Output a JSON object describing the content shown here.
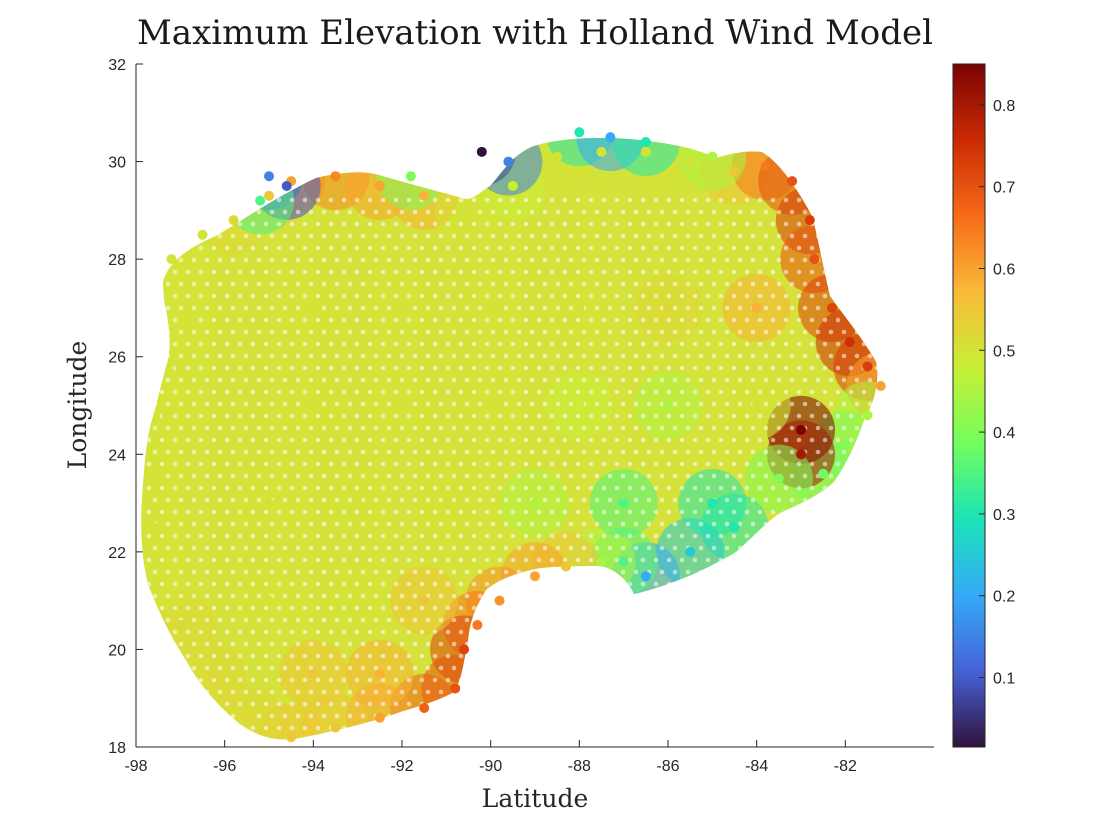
{
  "chart_data": {
    "type": "scatter",
    "title": "Maximum Elevation with Holland Wind Model",
    "xlabel": "Latitude",
    "ylabel": "Longitude",
    "xlim": [
      -98,
      -80
    ],
    "ylim": [
      18,
      32
    ],
    "xticks": [
      -98,
      -96,
      -94,
      -92,
      -90,
      -88,
      -86,
      -84,
      -82
    ],
    "yticks": [
      18,
      20,
      22,
      24,
      26,
      28,
      30,
      32
    ],
    "colorbar": {
      "range": [
        0.015,
        0.85
      ],
      "ticks": [
        0.1,
        0.2,
        0.3,
        0.4,
        0.5,
        0.6,
        0.7,
        0.8
      ],
      "colormap": [
        "#30123b",
        "#4662d7",
        "#36aaf9",
        "#1ae4b6",
        "#72fe5e",
        "#c8ef34",
        "#faba39",
        "#f66b19",
        "#cb2a04",
        "#7a0403"
      ]
    },
    "points": [
      [
        -97.2,
        28.0,
        0.5
      ],
      [
        -96.5,
        28.5,
        0.5
      ],
      [
        -95.8,
        28.8,
        0.52
      ],
      [
        -95.0,
        29.3,
        0.55
      ],
      [
        -94.5,
        29.6,
        0.6
      ],
      [
        -93.5,
        29.7,
        0.63
      ],
      [
        -92.5,
        29.5,
        0.6
      ],
      [
        -91.5,
        29.3,
        0.58
      ],
      [
        -90.5,
        29.0,
        0.5
      ],
      [
        -89.5,
        29.5,
        0.48
      ],
      [
        -88.5,
        30.1,
        0.5
      ],
      [
        -87.5,
        30.2,
        0.5
      ],
      [
        -86.5,
        30.2,
        0.5
      ],
      [
        -85.5,
        30.0,
        0.5
      ],
      [
        -84.5,
        29.8,
        0.55
      ],
      [
        -83.8,
        29.9,
        0.65
      ],
      [
        -83.2,
        29.6,
        0.7
      ],
      [
        -82.8,
        28.8,
        0.73
      ],
      [
        -82.7,
        28.0,
        0.7
      ],
      [
        -82.3,
        27.0,
        0.72
      ],
      [
        -81.9,
        26.3,
        0.75
      ],
      [
        -81.5,
        25.8,
        0.73
      ],
      [
        -81.2,
        25.4,
        0.6
      ],
      [
        -81.5,
        24.8,
        0.45
      ],
      [
        -82.0,
        24.2,
        0.4
      ],
      [
        -82.5,
        23.6,
        0.38
      ],
      [
        -83.0,
        24.5,
        0.85
      ],
      [
        -83.0,
        24.0,
        0.8
      ],
      [
        -83.5,
        23.5,
        0.4
      ],
      [
        -84.5,
        22.5,
        0.3
      ],
      [
        -85.5,
        22.0,
        0.25
      ],
      [
        -86.5,
        21.5,
        0.2
      ],
      [
        -87.0,
        21.8,
        0.35
      ],
      [
        -87.5,
        21.8,
        0.45
      ],
      [
        -88.3,
        21.7,
        0.55
      ],
      [
        -89.0,
        21.5,
        0.6
      ],
      [
        -89.8,
        21.0,
        0.62
      ],
      [
        -90.3,
        20.5,
        0.65
      ],
      [
        -90.6,
        20.0,
        0.72
      ],
      [
        -90.8,
        19.2,
        0.7
      ],
      [
        -91.5,
        18.8,
        0.68
      ],
      [
        -92.5,
        18.6,
        0.6
      ],
      [
        -93.5,
        18.4,
        0.55
      ],
      [
        -94.5,
        18.2,
        0.55
      ],
      [
        -95.5,
        18.6,
        0.52
      ],
      [
        -96.3,
        19.5,
        0.52
      ],
      [
        -97.0,
        20.5,
        0.52
      ],
      [
        -97.4,
        21.5,
        0.5
      ],
      [
        -97.6,
        22.5,
        0.5
      ],
      [
        -97.6,
        23.5,
        0.5
      ],
      [
        -97.3,
        24.8,
        0.5
      ],
      [
        -97.0,
        25.8,
        0.5
      ],
      [
        -96.8,
        26.8,
        0.5
      ],
      [
        -95.0,
        29.7,
        0.15
      ],
      [
        -94.6,
        29.5,
        0.1
      ],
      [
        -95.2,
        29.2,
        0.35
      ],
      [
        -91.8,
        29.7,
        0.4
      ],
      [
        -90.2,
        30.2,
        0.015
      ],
      [
        -89.6,
        30.0,
        0.15
      ],
      [
        -88.0,
        30.6,
        0.3
      ],
      [
        -87.3,
        30.5,
        0.2
      ],
      [
        -86.5,
        30.4,
        0.3
      ],
      [
        -85.0,
        30.1,
        0.45
      ],
      [
        -94.0,
        27.0,
        0.5
      ],
      [
        -92.0,
        27.0,
        0.5
      ],
      [
        -90.0,
        27.0,
        0.5
      ],
      [
        -88.0,
        27.0,
        0.5
      ],
      [
        -86.0,
        27.0,
        0.52
      ],
      [
        -84.0,
        27.0,
        0.58
      ],
      [
        -94.0,
        25.0,
        0.5
      ],
      [
        -92.0,
        25.0,
        0.5
      ],
      [
        -90.0,
        25.0,
        0.5
      ],
      [
        -88.0,
        25.0,
        0.48
      ],
      [
        -86.0,
        25.0,
        0.45
      ],
      [
        -84.0,
        25.0,
        0.5
      ],
      [
        -95.0,
        23.0,
        0.5
      ],
      [
        -93.0,
        23.0,
        0.5
      ],
      [
        -91.0,
        23.0,
        0.5
      ],
      [
        -89.0,
        23.0,
        0.45
      ],
      [
        -87.0,
        23.0,
        0.35
      ],
      [
        -85.0,
        23.0,
        0.3
      ],
      [
        -95.0,
        21.0,
        0.5
      ],
      [
        -93.0,
        21.0,
        0.5
      ],
      [
        -91.5,
        21.0,
        0.55
      ],
      [
        -94.0,
        19.5,
        0.55
      ],
      [
        -92.5,
        19.5,
        0.58
      ]
    ]
  }
}
